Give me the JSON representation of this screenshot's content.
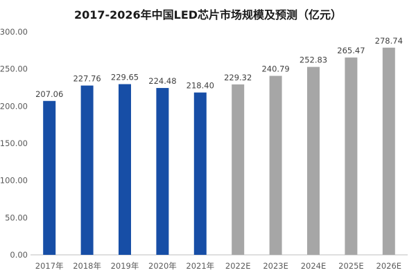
{
  "chart_data": {
    "type": "bar",
    "title": "2017-2026年中国LED芯片市场规模及预测（亿元）",
    "categories": [
      "2017年",
      "2018年",
      "2019年",
      "2020年",
      "2021年",
      "2022E",
      "2023E",
      "2024E",
      "2025E",
      "2026E"
    ],
    "values": [
      207.06,
      227.76,
      229.65,
      224.48,
      218.4,
      229.32,
      240.79,
      252.83,
      265.47,
      278.74
    ],
    "value_labels": [
      "207.06",
      "227.76",
      "229.65",
      "224.48",
      "218.40",
      "229.32",
      "240.79",
      "252.83",
      "265.47",
      "278.74"
    ],
    "ylim": [
      0,
      300
    ],
    "yticks": [
      0,
      50,
      100,
      150,
      200,
      250,
      300
    ],
    "ytick_labels": [
      "0.00",
      "50.00",
      "100.00",
      "150.00",
      "200.00",
      "250.00",
      "300.00"
    ],
    "xlabel": "",
    "ylabel": "",
    "grid": false,
    "actual_count": 5,
    "colors": {
      "actual": "#174ea6",
      "forecast": "#a6a6a6",
      "axis": "#bfbfbf"
    }
  }
}
